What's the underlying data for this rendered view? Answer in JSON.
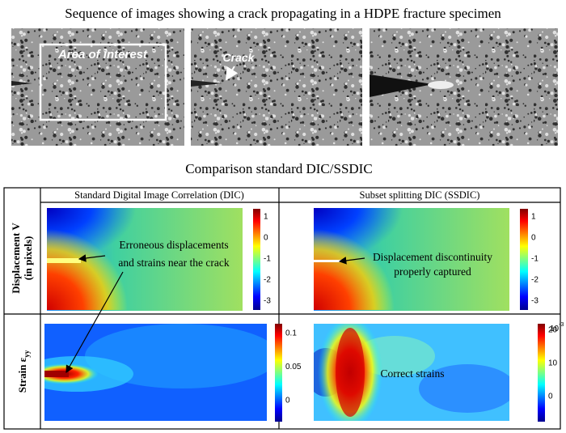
{
  "header": {
    "title": "Sequence of images showing a crack propagating in a HDPE fracture specimen"
  },
  "photos": {
    "area_label": "Area of interest",
    "crack_label": "Crack"
  },
  "comparison": {
    "title": "Comparison standard DIC/SSDIC",
    "columns": [
      "Standard Digital Image Correlation (DIC)",
      "Subset splitting DIC (SSDIC)"
    ],
    "rows": [
      {
        "label_lines": [
          "Displacement V",
          "(in pixels)"
        ]
      },
      {
        "label": "Strain ε",
        "subscript": "yy"
      }
    ]
  },
  "colorbars": {
    "dic_displacement": [
      1,
      0,
      -1,
      -2,
      -3
    ],
    "ssdic_displacement": [
      1,
      0,
      -1,
      -2,
      -3
    ],
    "dic_strain": [
      0.1,
      0.05,
      0
    ],
    "ssdic_strain": {
      "ticks": [
        20,
        10,
        0
      ],
      "scale_base": "10",
      "scale_exponent": "-3"
    }
  },
  "annotations": {
    "dic": [
      "Erroneous displacements",
      "and strains near the crack"
    ],
    "ssdic": [
      "Displacement discontinuity",
      "properly captured"
    ],
    "strain": "Correct strains"
  }
}
